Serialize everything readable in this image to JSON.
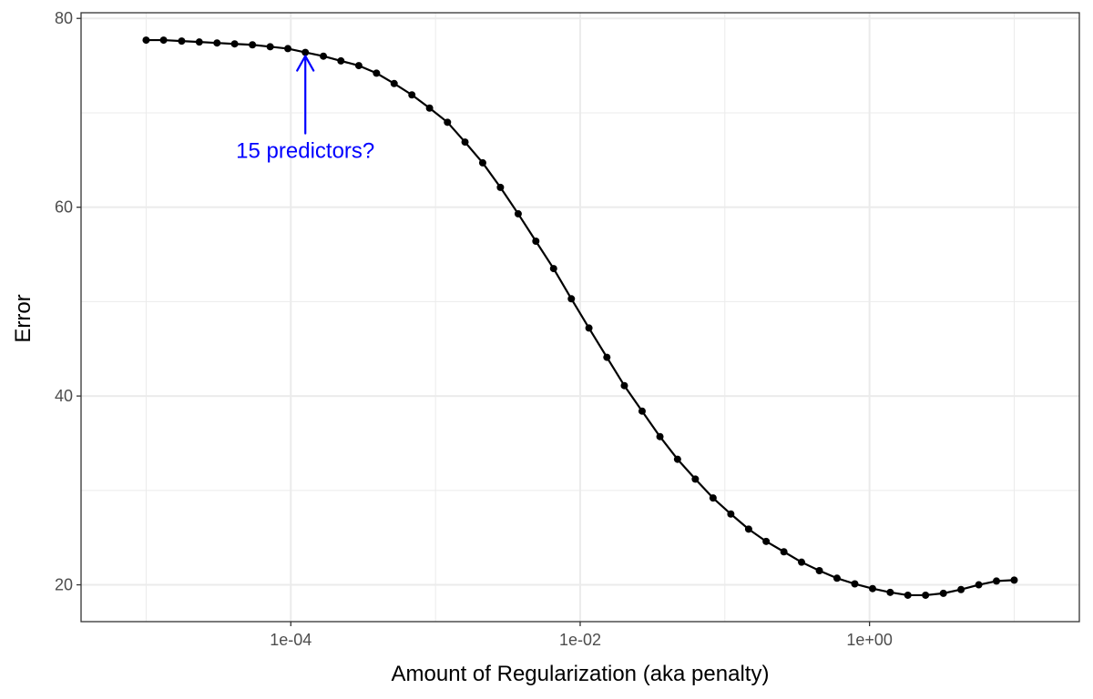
{
  "chart_data": {
    "type": "line",
    "title": "",
    "xlabel": "Amount of Regularization (aka penalty)",
    "ylabel": "Error",
    "x_scale": "log10",
    "xlim": [
      3.55e-06,
      28.2
    ],
    "ylim": [
      16.1,
      80.6
    ],
    "x_ticks": [
      {
        "value": 0.0001,
        "label": "1e-04"
      },
      {
        "value": 0.01,
        "label": "1e-02"
      },
      {
        "value": 1,
        "label": "1e+00"
      }
    ],
    "y_ticks": [
      {
        "value": 20,
        "label": "20"
      },
      {
        "value": 40,
        "label": "40"
      },
      {
        "value": 60,
        "label": "60"
      },
      {
        "value": 80,
        "label": "80"
      }
    ],
    "grid": true,
    "legend": "none",
    "series": [
      {
        "color": "#000000",
        "points": [
          [
            1e-05,
            77.7
          ],
          [
            1.32e-05,
            77.7
          ],
          [
            1.76e-05,
            77.6
          ],
          [
            2.33e-05,
            77.5
          ],
          [
            3.09e-05,
            77.4
          ],
          [
            4.09e-05,
            77.3
          ],
          [
            5.43e-05,
            77.2
          ],
          [
            7.2e-05,
            77.0
          ],
          [
            9.54e-05,
            76.8
          ],
          [
            0.000126,
            76.4
          ],
          [
            0.000168,
            76.0
          ],
          [
            0.000222,
            75.5
          ],
          [
            0.000295,
            75.0
          ],
          [
            0.000391,
            74.2
          ],
          [
            0.000518,
            73.1
          ],
          [
            0.000687,
            71.9
          ],
          [
            0.00091,
            70.5
          ],
          [
            0.00121,
            69.0
          ],
          [
            0.0016,
            66.9
          ],
          [
            0.00212,
            64.7
          ],
          [
            0.00281,
            62.1
          ],
          [
            0.00373,
            59.3
          ],
          [
            0.00494,
            56.4
          ],
          [
            0.00655,
            53.5
          ],
          [
            0.00869,
            50.3
          ],
          [
            0.0115,
            47.2
          ],
          [
            0.0153,
            44.1
          ],
          [
            0.0202,
            41.1
          ],
          [
            0.0268,
            38.4
          ],
          [
            0.0356,
            35.7
          ],
          [
            0.0471,
            33.3
          ],
          [
            0.0625,
            31.2
          ],
          [
            0.0829,
            29.2
          ],
          [
            0.11,
            27.5
          ],
          [
            0.146,
            25.9
          ],
          [
            0.193,
            24.6
          ],
          [
            0.256,
            23.5
          ],
          [
            0.339,
            22.4
          ],
          [
            0.45,
            21.5
          ],
          [
            0.596,
            20.7
          ],
          [
            0.791,
            20.1
          ],
          [
            1.05,
            19.6
          ],
          [
            1.39,
            19.2
          ],
          [
            1.84,
            18.9
          ],
          [
            2.44,
            18.9
          ],
          [
            3.24,
            19.1
          ],
          [
            4.29,
            19.5
          ],
          [
            5.69,
            20.0
          ],
          [
            7.54,
            20.4
          ],
          [
            10.0,
            20.5
          ]
        ]
      }
    ],
    "annotations": [
      {
        "text": "15 predictors?",
        "x": 0.000126,
        "y": 76.4,
        "color": "#0000ff",
        "arrow": true
      }
    ]
  }
}
